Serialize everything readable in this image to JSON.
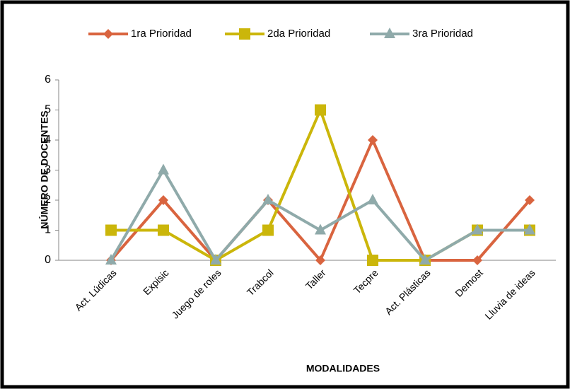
{
  "chart_data": {
    "type": "line",
    "xlabel": "MODALIDADES",
    "ylabel": "NÚMERO DE DOCENTES",
    "categories": [
      "Act. Lúdicas",
      "Expisic",
      "Juego de roles",
      "Trabcol",
      "Taller",
      "Tecpre",
      "Act. Plásticas",
      "Demost",
      "Lluvia de ideas"
    ],
    "series": [
      {
        "name": "1ra Prioridad",
        "color": "#d9643f",
        "marker": "diamond",
        "values": [
          0,
          2,
          0,
          2,
          0,
          4,
          0,
          0,
          2
        ]
      },
      {
        "name": "2da Prioridad",
        "color": "#cbb60a",
        "marker": "square",
        "values": [
          1,
          1,
          0,
          1,
          5,
          0,
          0,
          1,
          1
        ]
      },
      {
        "name": "3ra Prioridad",
        "color": "#8faaaa",
        "marker": "triangle",
        "values": [
          0,
          3,
          0,
          2,
          1,
          2,
          0,
          1,
          1
        ]
      }
    ],
    "ylim": [
      0,
      6
    ],
    "yticks": [
      0,
      1,
      2,
      3,
      4,
      5,
      6
    ],
    "grid": false,
    "legend": "top"
  }
}
